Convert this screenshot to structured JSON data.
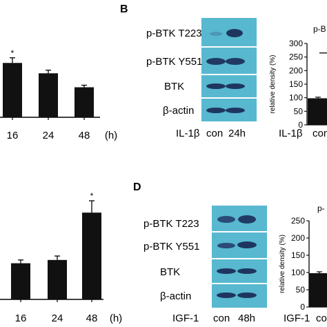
{
  "colors": {
    "bar": "#111111",
    "blot_bg": "#57b8cf",
    "blot_band": "#203a63",
    "separator": "#ffffff"
  },
  "panels": {
    "b": "B",
    "d": "D"
  },
  "chart_data": [
    {
      "type": "bar",
      "panel": "top-left",
      "categories": [
        "16",
        "24",
        "48"
      ],
      "values": [
        105,
        85,
        58
      ],
      "errors": [
        10,
        6,
        4
      ],
      "significance": [
        "*",
        "",
        ""
      ],
      "x_unit": "(h)",
      "ylim": [
        0,
        160
      ]
    },
    {
      "type": "bar",
      "panel": "bottom-left",
      "categories": [
        "16",
        "24",
        "48"
      ],
      "values": [
        55,
        60,
        132
      ],
      "errors": [
        5,
        6,
        18
      ],
      "significance": [
        "",
        "",
        "*"
      ],
      "x_unit": "(h)",
      "ylim": [
        0,
        170
      ]
    },
    {
      "type": "bar",
      "panel": "B-right",
      "title_fragment": "p-B",
      "ylabel": "relative density (%)",
      "yticks": [
        0,
        50,
        100,
        150,
        200,
        250,
        300
      ],
      "ylim": [
        0,
        300
      ],
      "categories": [
        "con"
      ],
      "values": [
        98
      ],
      "errors": [
        4
      ],
      "treatment_label": "IL-1β",
      "significance_line_y": 265
    },
    {
      "type": "bar",
      "panel": "D-right",
      "title_fragment": "p-",
      "ylabel": "relative density (%)",
      "yticks": [
        0,
        50,
        100,
        150,
        200,
        250
      ],
      "ylim": [
        0,
        250
      ],
      "categories": [
        "co"
      ],
      "values": [
        98
      ],
      "errors": [
        4
      ],
      "treatment_label": "IGF-1"
    }
  ],
  "blots": {
    "B": {
      "rows": [
        "p-BTK T223",
        "p-BTK Y551",
        "BTK",
        "β-actin"
      ],
      "treatment": "IL-1β",
      "lanes": [
        "con",
        "24h"
      ]
    },
    "D": {
      "rows": [
        "p-BTK T223",
        "p-BTK Y551",
        "BTK",
        "β-actin"
      ],
      "treatment": "IGF-1",
      "lanes": [
        "con",
        "48h"
      ]
    }
  }
}
